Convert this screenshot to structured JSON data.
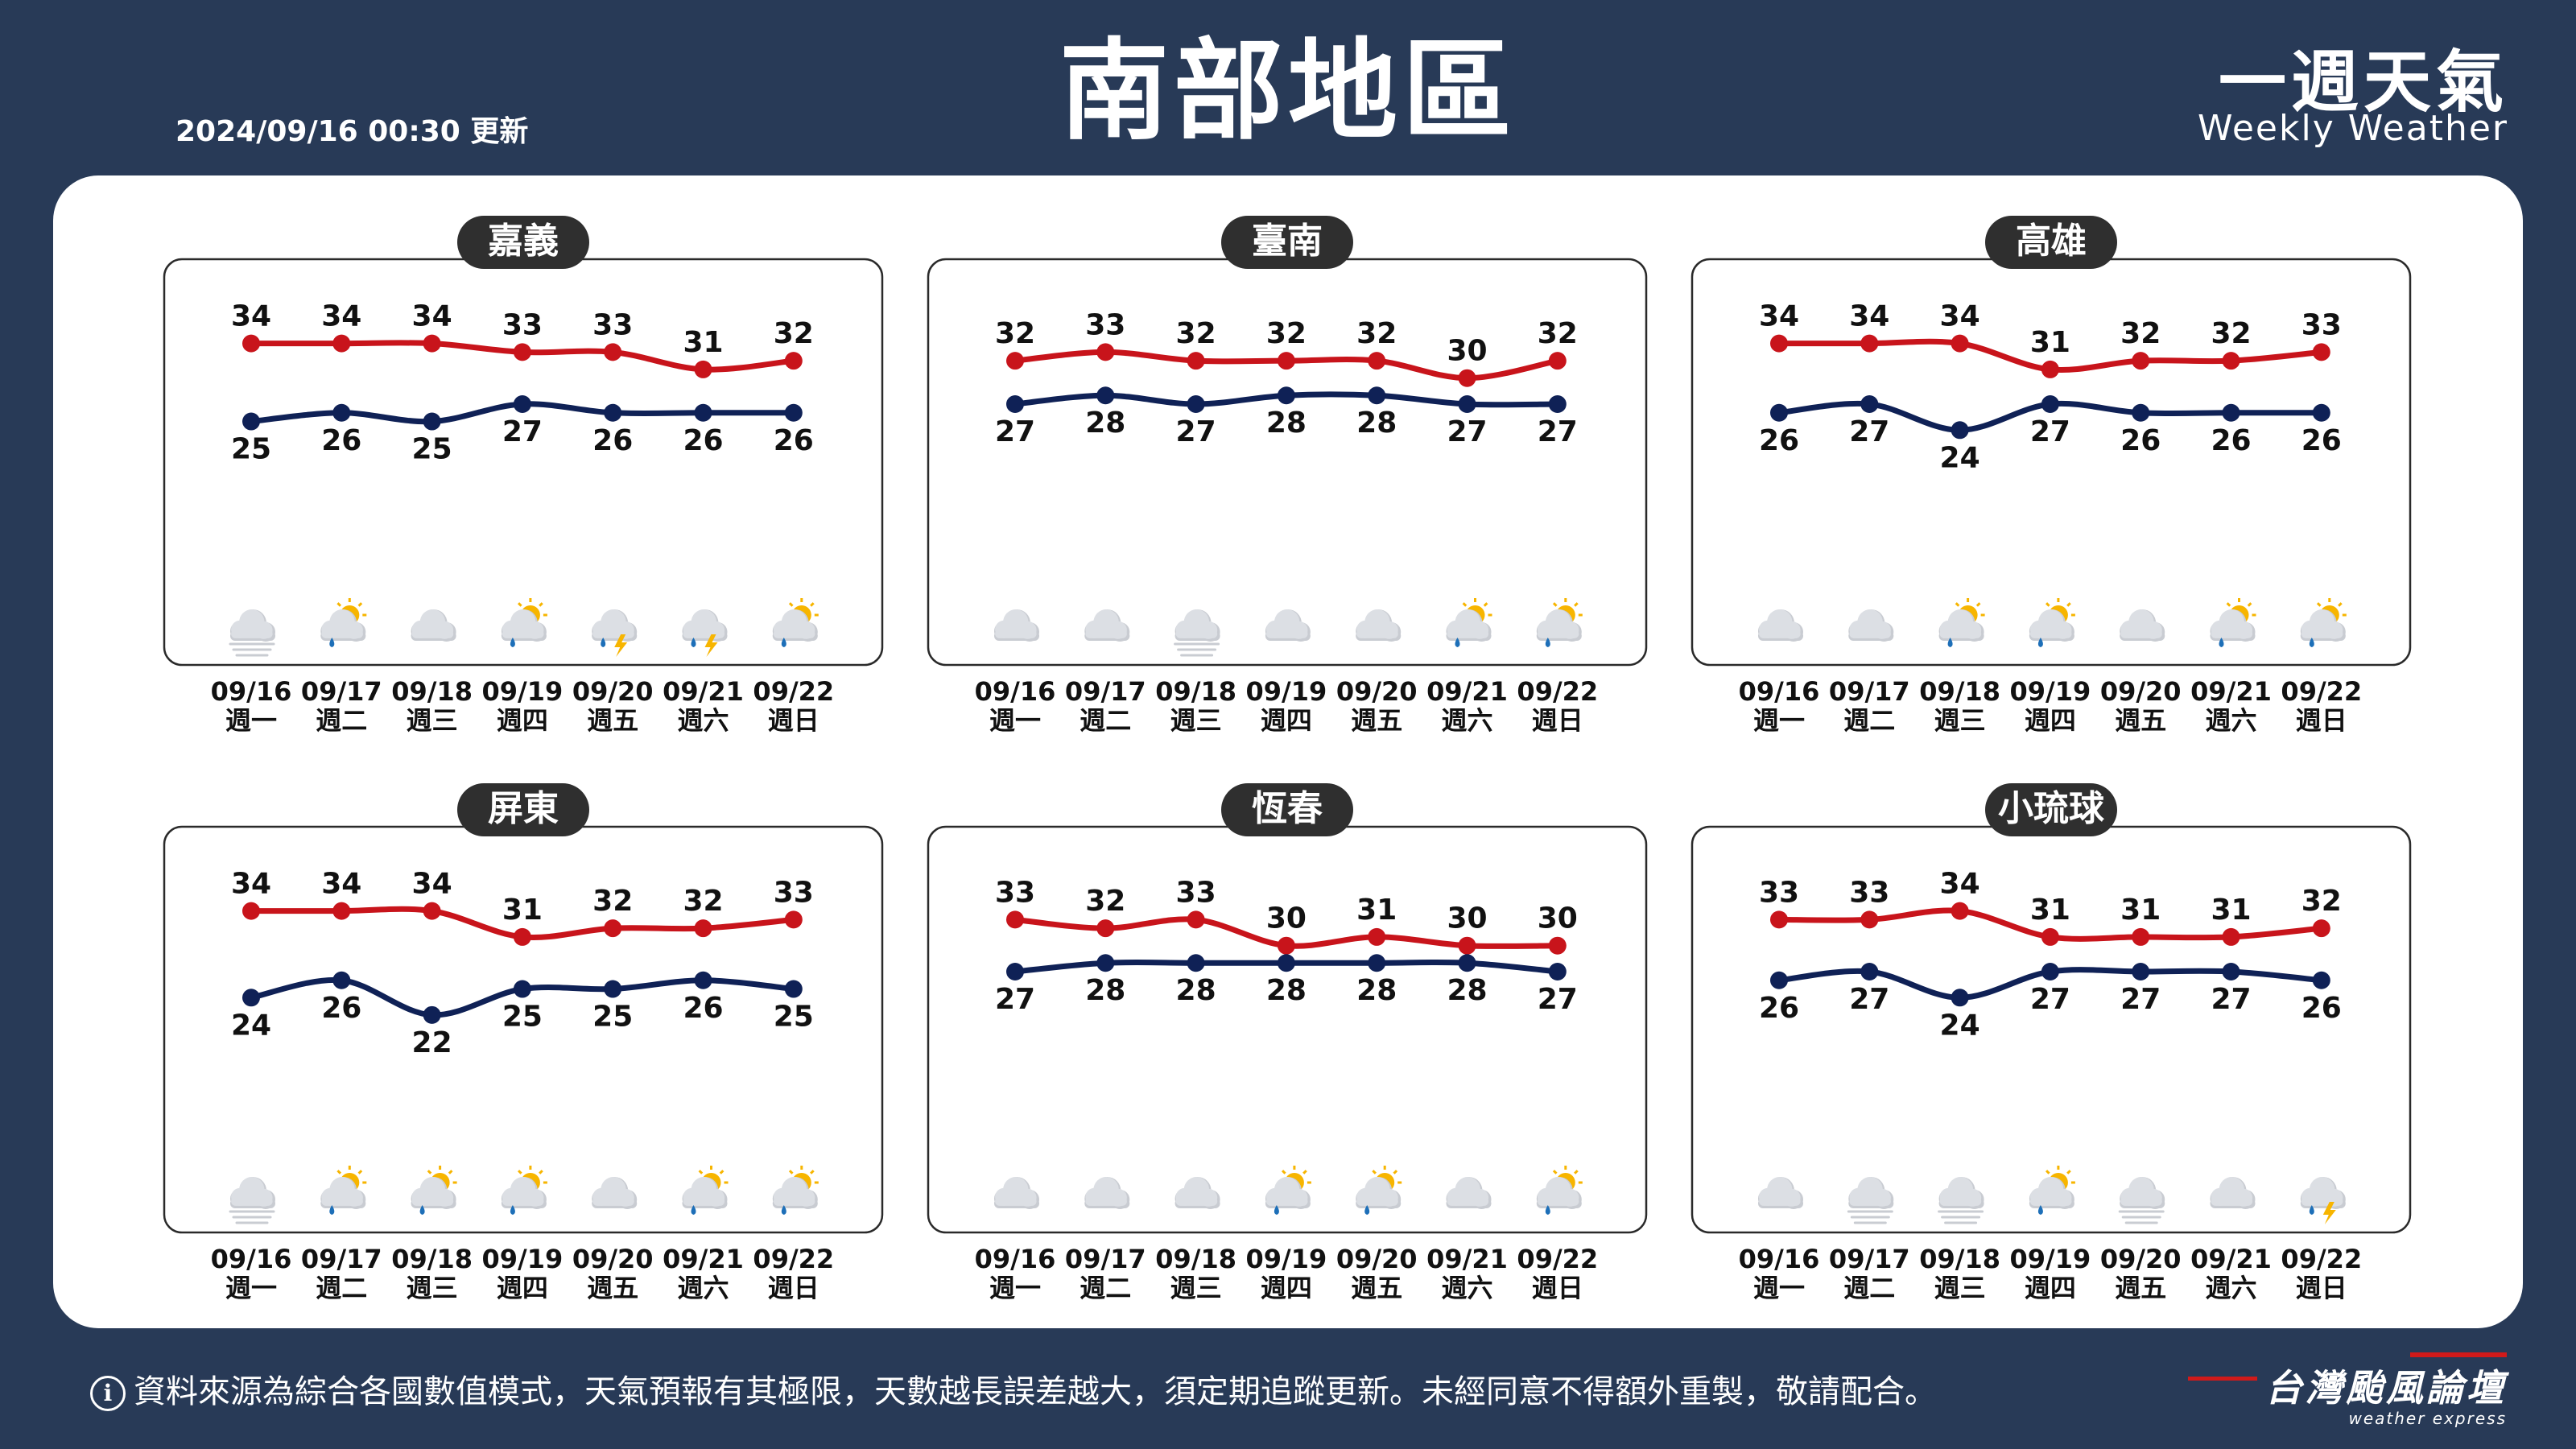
{
  "header": {
    "title": "南部地區",
    "updated": "2024/09/16 00:30 更新",
    "brand_cn": "一週天氣",
    "brand_en": "Weekly Weather"
  },
  "footer": {
    "disclaimer": "資料來源為綜合各國數值模式，天氣預報有其極限，天數越長誤差越大，須定期追蹤更新。未經同意不得額外重製，敬請配合。",
    "logo_cn": "台灣颱風論壇",
    "logo_en": "weather express"
  },
  "colors": {
    "high": "#c8141b",
    "low": "#0f2156",
    "badge": "#2f2f2f",
    "background": "#283a57"
  },
  "chart_data": [
    {
      "type": "line",
      "title": "嘉義",
      "categories": [
        "09/16",
        "09/17",
        "09/18",
        "09/19",
        "09/20",
        "09/21",
        "09/22"
      ],
      "weekdays": [
        "週一",
        "週二",
        "週三",
        "週四",
        "週五",
        "週六",
        "週日"
      ],
      "series": [
        {
          "role": "high",
          "values": [
            34,
            34,
            34,
            33,
            33,
            31,
            32
          ]
        },
        {
          "role": "low",
          "values": [
            25,
            26,
            25,
            27,
            26,
            26,
            26
          ]
        }
      ],
      "icons": [
        "fog-icon",
        "partly-cloudy-rain-icon",
        "cloudy-icon",
        "partly-cloudy-rain-icon",
        "thunder-rain-icon",
        "thunder-rain-icon",
        "partly-cloudy-rain-icon"
      ]
    },
    {
      "type": "line",
      "title": "臺南",
      "categories": [
        "09/16",
        "09/17",
        "09/18",
        "09/19",
        "09/20",
        "09/21",
        "09/22"
      ],
      "weekdays": [
        "週一",
        "週二",
        "週三",
        "週四",
        "週五",
        "週六",
        "週日"
      ],
      "series": [
        {
          "role": "high",
          "values": [
            32,
            33,
            32,
            32,
            32,
            30,
            32
          ]
        },
        {
          "role": "low",
          "values": [
            27,
            28,
            27,
            28,
            28,
            27,
            27
          ]
        }
      ],
      "icons": [
        "cloudy-icon",
        "cloudy-icon",
        "fog-icon",
        "cloudy-icon",
        "cloudy-icon",
        "partly-cloudy-rain-icon",
        "partly-cloudy-rain-icon"
      ]
    },
    {
      "type": "line",
      "title": "高雄",
      "categories": [
        "09/16",
        "09/17",
        "09/18",
        "09/19",
        "09/20",
        "09/21",
        "09/22"
      ],
      "weekdays": [
        "週一",
        "週二",
        "週三",
        "週四",
        "週五",
        "週六",
        "週日"
      ],
      "series": [
        {
          "role": "high",
          "values": [
            34,
            34,
            34,
            31,
            32,
            32,
            33
          ]
        },
        {
          "role": "low",
          "values": [
            26,
            27,
            24,
            27,
            26,
            26,
            26
          ]
        }
      ],
      "icons": [
        "cloudy-icon",
        "cloudy-icon",
        "partly-cloudy-rain-icon",
        "partly-cloudy-rain-icon",
        "cloudy-icon",
        "partly-cloudy-rain-icon",
        "partly-cloudy-rain-icon"
      ]
    },
    {
      "type": "line",
      "title": "屏東",
      "categories": [
        "09/16",
        "09/17",
        "09/18",
        "09/19",
        "09/20",
        "09/21",
        "09/22"
      ],
      "weekdays": [
        "週一",
        "週二",
        "週三",
        "週四",
        "週五",
        "週六",
        "週日"
      ],
      "series": [
        {
          "role": "high",
          "values": [
            34,
            34,
            34,
            31,
            32,
            32,
            33
          ]
        },
        {
          "role": "low",
          "values": [
            24,
            26,
            22,
            25,
            25,
            26,
            25
          ]
        }
      ],
      "icons": [
        "fog-icon",
        "partly-cloudy-rain-icon",
        "partly-cloudy-rain-icon",
        "partly-cloudy-rain-icon",
        "cloudy-icon",
        "partly-cloudy-rain-icon",
        "partly-cloudy-rain-icon"
      ]
    },
    {
      "type": "line",
      "title": "恆春",
      "categories": [
        "09/16",
        "09/17",
        "09/18",
        "09/19",
        "09/20",
        "09/21",
        "09/22"
      ],
      "weekdays": [
        "週一",
        "週二",
        "週三",
        "週四",
        "週五",
        "週六",
        "週日"
      ],
      "series": [
        {
          "role": "high",
          "values": [
            33,
            32,
            33,
            30,
            31,
            30,
            30
          ]
        },
        {
          "role": "low",
          "values": [
            27,
            28,
            28,
            28,
            28,
            28,
            27
          ]
        }
      ],
      "icons": [
        "cloudy-icon",
        "cloudy-icon",
        "cloudy-icon",
        "partly-cloudy-rain-icon",
        "partly-cloudy-rain-icon",
        "cloudy-icon",
        "partly-cloudy-rain-icon"
      ]
    },
    {
      "type": "line",
      "title": "小琉球",
      "categories": [
        "09/16",
        "09/17",
        "09/18",
        "09/19",
        "09/20",
        "09/21",
        "09/22"
      ],
      "weekdays": [
        "週一",
        "週二",
        "週三",
        "週四",
        "週五",
        "週六",
        "週日"
      ],
      "series": [
        {
          "role": "high",
          "values": [
            33,
            33,
            34,
            31,
            31,
            31,
            32
          ]
        },
        {
          "role": "low",
          "values": [
            26,
            27,
            24,
            27,
            27,
            27,
            26
          ]
        }
      ],
      "icons": [
        "cloudy-icon",
        "fog-icon",
        "fog-icon",
        "partly-cloudy-rain-icon",
        "fog-icon",
        "cloudy-icon",
        "thunder-rain-icon"
      ]
    }
  ]
}
